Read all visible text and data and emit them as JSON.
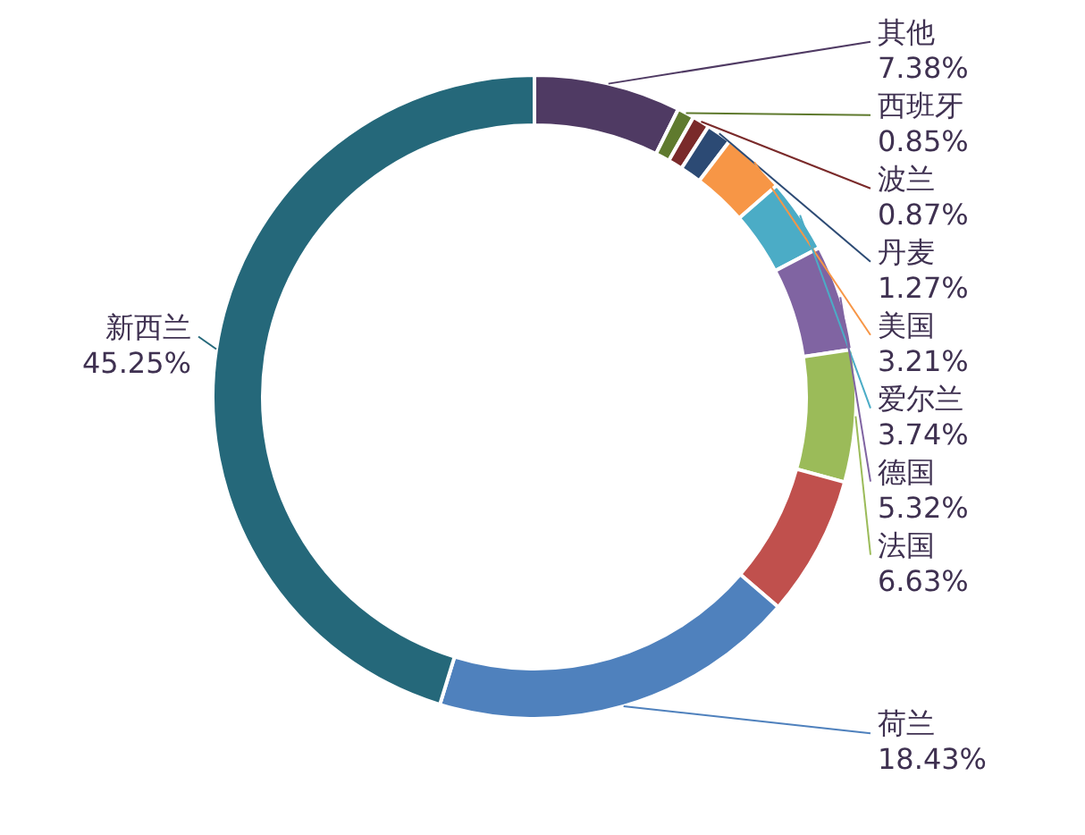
{
  "chart_data": {
    "type": "donut",
    "categories": [
      "其他",
      "西班牙",
      "波兰",
      "丹麦",
      "美国",
      "爱尔兰",
      "德国",
      "法国",
      null,
      "荷兰",
      "新西兰"
    ],
    "values": [
      7.38,
      0.85,
      0.87,
      1.27,
      3.21,
      3.74,
      5.32,
      6.63,
      7.05,
      18.43,
      45.25
    ],
    "value_labels": [
      "7.38%",
      "0.85%",
      "0.87%",
      "1.27%",
      "3.21%",
      "3.74%",
      "5.32%",
      "6.63%",
      null,
      "18.43%",
      "45.25%"
    ],
    "colors": [
      "#4f3a63",
      "#5f7a2e",
      "#7a2a2a",
      "#2c4a74",
      "#f79646",
      "#4bacc6",
      "#8064a2",
      "#9bbb59",
      "#c0504d",
      "#4f81bd",
      "#25687a"
    ]
  }
}
